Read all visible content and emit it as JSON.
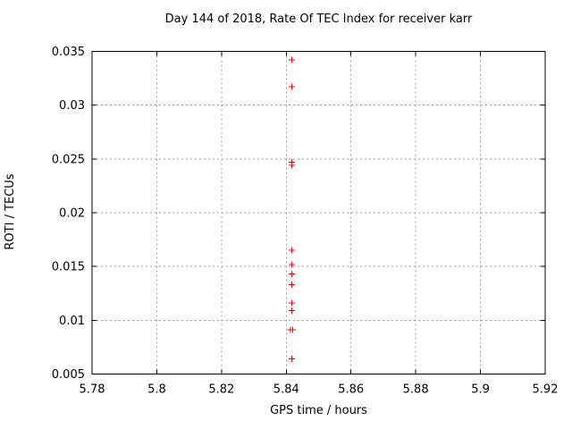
{
  "page": {
    "background": "#ffffff"
  },
  "colors": {
    "marker_red": "#ff0000",
    "grid_gray": "#9e9e9e",
    "axis_black": "#000000",
    "text_black": "#000000"
  },
  "chart_data": {
    "type": "scatter",
    "title": "Day 144 of 2018, Rate Of TEC Index for receiver karr",
    "xlabel": "GPS time / hours",
    "ylabel": "ROTI / TECUs",
    "xlim": [
      5.78,
      5.92
    ],
    "ylim": [
      0.005,
      0.035
    ],
    "grid": "dashed",
    "legend_position": "none",
    "xticks": {
      "values": [
        5.78,
        5.8,
        5.82,
        5.84,
        5.86,
        5.88,
        5.9,
        5.92
      ],
      "labels": [
        "5.78",
        "5.8",
        "5.82",
        "5.84",
        "5.86",
        "5.88",
        "5.9",
        "5.92"
      ]
    },
    "yticks": {
      "values": [
        0.005,
        0.01,
        0.015,
        0.02,
        0.025,
        0.03,
        0.035
      ],
      "labels": [
        "0.005",
        "0.01",
        "0.015",
        "0.02",
        "0.025",
        "0.03",
        "0.035"
      ]
    },
    "series": [
      {
        "name": "ROTI",
        "marker": "plus",
        "marker_size": 7,
        "color": "#ff0000",
        "points": [
          [
            5.8417,
            0.0342
          ],
          [
            5.8417,
            0.0317
          ],
          [
            5.8417,
            0.0247
          ],
          [
            5.8417,
            0.0244
          ],
          [
            5.8417,
            0.0165
          ],
          [
            5.8417,
            0.0152
          ],
          [
            5.8417,
            0.0143
          ],
          [
            5.8417,
            0.0133
          ],
          [
            5.8417,
            0.0116
          ],
          [
            5.8417,
            0.0109
          ],
          [
            5.8413,
            0.0091
          ],
          [
            5.842,
            0.0091
          ],
          [
            5.8417,
            0.0064
          ]
        ]
      }
    ]
  }
}
